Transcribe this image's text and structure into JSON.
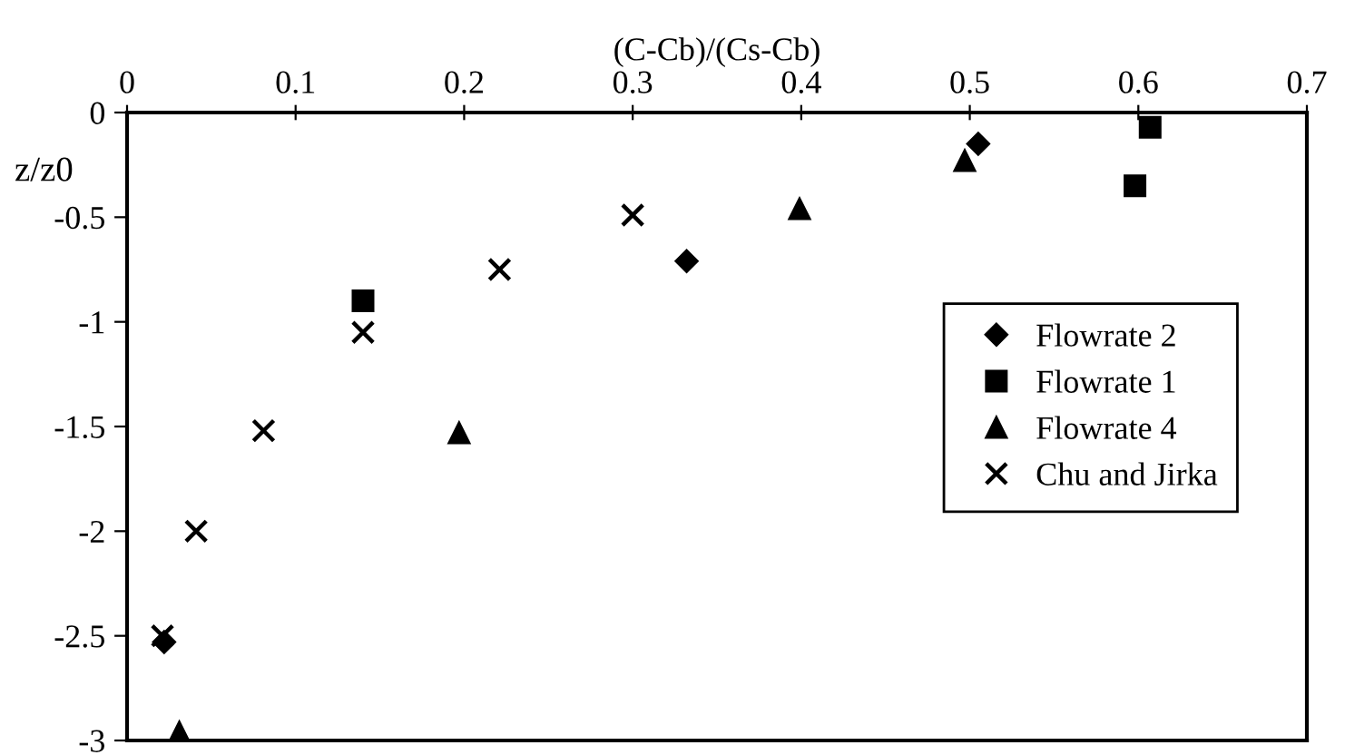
{
  "chart_data": {
    "type": "scatter",
    "title": "(C-Cb)/(Cs-Cb)",
    "ylabel": "z/z0",
    "xlim": [
      0,
      0.7
    ],
    "xticks": [
      0,
      0.1,
      0.2,
      0.3,
      0.4,
      0.5,
      0.6,
      0.7
    ],
    "ylim": [
      -3,
      0
    ],
    "yticks": [
      -3,
      -2.5,
      -2,
      -1.5,
      -1,
      -0.5,
      0
    ],
    "grid": false,
    "legend": "right",
    "series": [
      {
        "name": "Flowrate 2",
        "color": "#000000",
        "marker": "diamond",
        "x": [
          0.505,
          0.332,
          0.022
        ],
        "values": [
          -0.15,
          -0.71,
          -2.53
        ]
      },
      {
        "name": "Flowrate 1",
        "color": "#000000",
        "marker": "square",
        "x": [
          0.607,
          0.598,
          0.14
        ],
        "values": [
          -0.07,
          -0.35,
          -0.9
        ]
      },
      {
        "name": "Flowrate 4",
        "color": "#000000",
        "marker": "triangle",
        "x": [
          0.497,
          0.399,
          0.197,
          0.031
        ],
        "values": [
          -0.23,
          -0.46,
          -1.53,
          -2.96
        ]
      },
      {
        "name": "Chu and Jirka",
        "color": "#000000",
        "marker": "cross",
        "x": [
          0.3,
          0.221,
          0.14,
          0.081,
          0.041,
          0.021
        ],
        "values": [
          -0.49,
          -0.75,
          -1.05,
          -1.52,
          -2.0,
          -2.5
        ]
      }
    ]
  }
}
